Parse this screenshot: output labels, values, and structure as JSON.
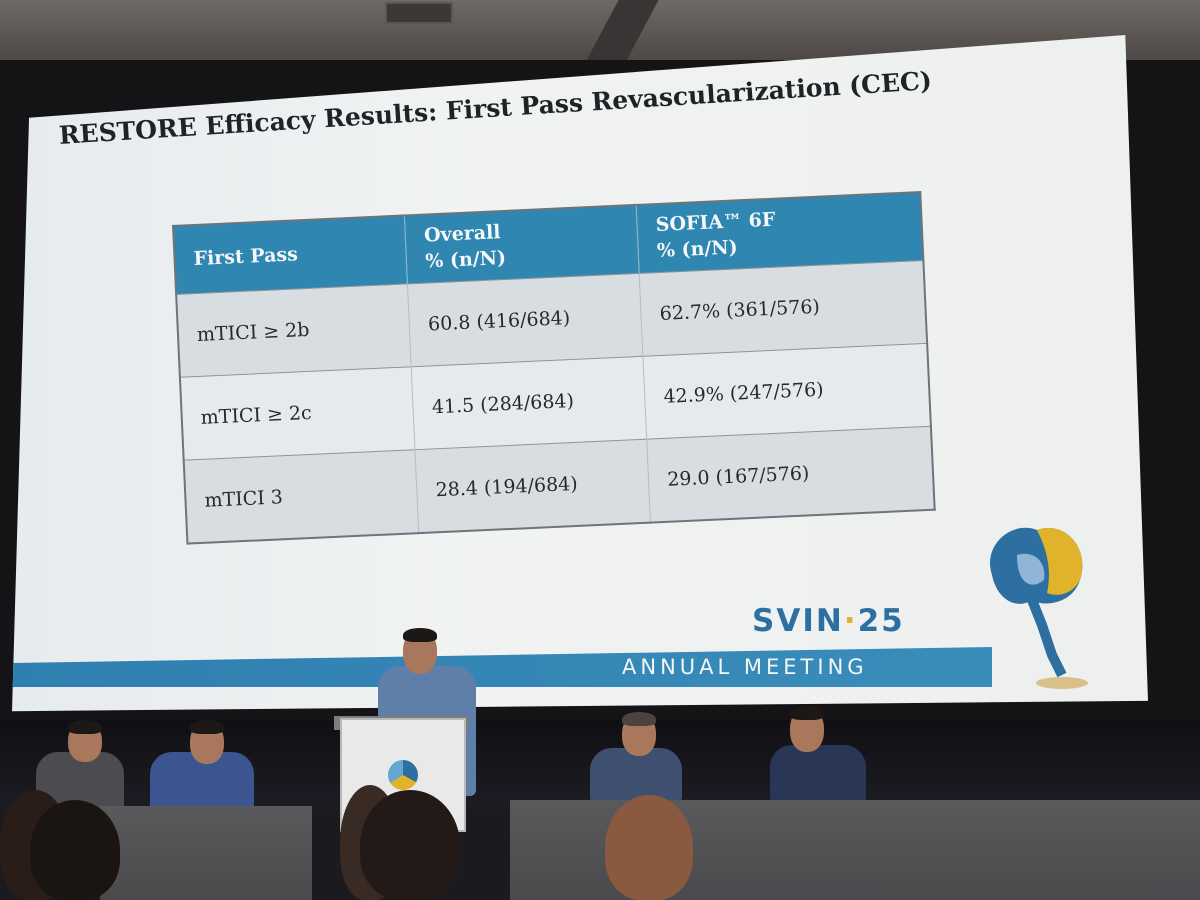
{
  "slide": {
    "title": "RESTORE Efficacy Results: First Pass Revascularization (CEC)",
    "table": {
      "headers": [
        "First Pass",
        "Overall\n% (n/N)",
        "SOFIA™ 6F\n% (n/N)"
      ],
      "rows": [
        [
          "mTICI ≥ 2b",
          "60.8 (416/684)",
          "62.7% (361/576)"
        ],
        [
          "mTICI ≥ 2c",
          "41.5 (284/684)",
          "42.9% (247/576)"
        ],
        [
          "mTICI 3",
          "28.4 (194/684)",
          "29.0 (167/576)"
        ]
      ]
    },
    "logo": {
      "name": "SVIN",
      "dot": "·",
      "year": "25"
    },
    "banner": "ANNUAL MEETING"
  },
  "colors": {
    "header_blue": "#2f86b0",
    "brand_blue": "#2d6fa0",
    "brand_gold": "#e0b32b"
  }
}
